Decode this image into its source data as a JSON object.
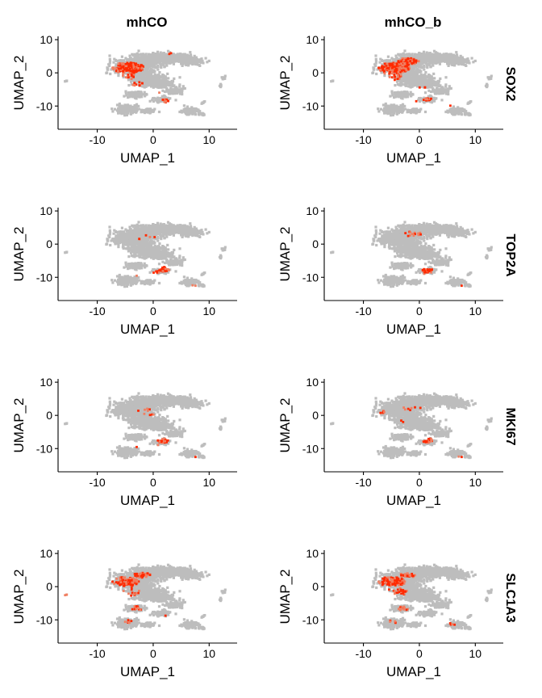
{
  "figure": {
    "columns": [
      "mhCO",
      "mhCO_b"
    ],
    "rows": [
      "SOX2",
      "TOP2A",
      "MKI67",
      "SLC1A3"
    ]
  },
  "colors": {
    "background_cells": "#bdbdbd",
    "high_expression": "#ff2a00",
    "mid_expression": "#f07f62"
  },
  "chart_data": {
    "type": "scatter",
    "title": "",
    "xlabel": "UMAP_1",
    "ylabel": "UMAP_2",
    "xlim": [
      -17,
      15
    ],
    "ylim": [
      -17,
      11
    ],
    "x_ticks": [
      -10,
      0,
      10
    ],
    "y_ticks": [
      -10,
      0,
      10
    ],
    "x_tick_labels": [
      "-10",
      "0",
      "10"
    ],
    "y_tick_labels": [
      "-10",
      "0",
      "10"
    ],
    "legend": "none",
    "facets": [
      {
        "gene": "SOX2",
        "sample": "mhCO",
        "expressed_regions": [
          [
            -4.5,
            1.5,
            2.8,
            1.6,
            0.75
          ],
          [
            -5,
            -1,
            1.8,
            1.4,
            0.6
          ],
          [
            -3,
            -3.5,
            1.2,
            0.8,
            0.55
          ],
          [
            1,
            -6,
            1.5,
            0.8,
            0.5
          ],
          [
            2.5,
            -8.5,
            1,
            0.6,
            0.8
          ],
          [
            -1,
            -8,
            0.8,
            0.4,
            0.45
          ],
          [
            -4,
            -9,
            0.6,
            0.4,
            0.35
          ],
          [
            3,
            6,
            0.6,
            0.5,
            0.3
          ]
        ]
      },
      {
        "gene": "SOX2",
        "sample": "mhCO_b",
        "expressed_regions": [
          [
            -4.5,
            1.5,
            2.8,
            1.6,
            0.8
          ],
          [
            -5,
            -1,
            1.8,
            1.4,
            0.65
          ],
          [
            -2,
            3.5,
            2,
            1,
            0.55
          ],
          [
            0.5,
            -5,
            1.2,
            0.9,
            0.45
          ],
          [
            1.5,
            -8,
            0.8,
            0.5,
            0.5
          ],
          [
            -1,
            -8.5,
            0.6,
            0.4,
            0.4
          ],
          [
            6,
            -10,
            0.6,
            0.4,
            0.35
          ]
        ]
      },
      {
        "gene": "TOP2A",
        "sample": "mhCO",
        "expressed_regions": [
          [
            2,
            -7.5,
            1.2,
            0.8,
            0.85
          ],
          [
            0.5,
            -8.5,
            0.6,
            0.4,
            0.6
          ],
          [
            -2.5,
            -9.5,
            0.5,
            0.4,
            0.55
          ],
          [
            5.5,
            -6.5,
            0.3,
            0.3,
            0.5
          ],
          [
            7.5,
            -12.5,
            0.5,
            0.4,
            0.7
          ],
          [
            -1,
            1.5,
            2,
            1.2,
            0.07
          ],
          [
            -3,
            5,
            0.3,
            0.2,
            0.5
          ]
        ]
      },
      {
        "gene": "TOP2A",
        "sample": "mhCO_b",
        "expressed_regions": [
          [
            1.5,
            -8,
            1,
            0.7,
            0.85
          ],
          [
            0.5,
            -9,
            0.5,
            0.4,
            0.6
          ],
          [
            -2,
            -10,
            0.4,
            0.3,
            0.5
          ],
          [
            7.5,
            -12.5,
            0.5,
            0.4,
            0.75
          ],
          [
            -6,
            0,
            0.8,
            0.5,
            0.12
          ],
          [
            -1,
            3,
            1.8,
            1,
            0.06
          ]
        ]
      },
      {
        "gene": "MKI67",
        "sample": "mhCO",
        "expressed_regions": [
          [
            2,
            -7.5,
            1.2,
            0.8,
            0.85
          ],
          [
            -2.5,
            -9.5,
            0.5,
            0.4,
            0.6
          ],
          [
            0.5,
            -9,
            0.5,
            0.3,
            0.5
          ],
          [
            7.5,
            -12.5,
            0.4,
            0.4,
            0.65
          ],
          [
            2,
            8,
            0.3,
            0.3,
            0.6
          ],
          [
            -1,
            1,
            2,
            1.2,
            0.06
          ]
        ]
      },
      {
        "gene": "MKI67",
        "sample": "mhCO_b",
        "expressed_regions": [
          [
            1.5,
            -7.5,
            1,
            0.7,
            0.85
          ],
          [
            -1,
            -8.5,
            0.6,
            0.4,
            0.6
          ],
          [
            7.5,
            -12.5,
            0.5,
            0.4,
            0.75
          ],
          [
            -6.5,
            1,
            0.6,
            0.4,
            0.15
          ],
          [
            -3,
            -2,
            0.6,
            0.5,
            0.12
          ],
          [
            -1,
            2,
            2,
            1,
            0.06
          ]
        ]
      },
      {
        "gene": "SLC1A3",
        "sample": "mhCO",
        "expressed_regions": [
          [
            -5,
            1.5,
            2.5,
            1.4,
            0.5
          ],
          [
            -4,
            -1.5,
            1.8,
            1.3,
            0.35
          ],
          [
            -2,
            3.5,
            1.5,
            0.8,
            0.35
          ],
          [
            -3,
            -6.5,
            1,
            0.8,
            0.3
          ],
          [
            -4.5,
            -10.5,
            0.8,
            0.5,
            0.3
          ],
          [
            2.5,
            -9,
            0.6,
            0.4,
            0.25
          ],
          [
            -15.5,
            -2.5,
            0.3,
            0.3,
            0.9
          ],
          [
            6,
            -12,
            0.6,
            0.5,
            0.2
          ]
        ]
      },
      {
        "gene": "SLC1A3",
        "sample": "mhCO_b",
        "expressed_regions": [
          [
            -5,
            1.5,
            2.5,
            1.4,
            0.55
          ],
          [
            -4,
            -1.5,
            1.8,
            1.3,
            0.4
          ],
          [
            -2,
            3.5,
            1.5,
            0.8,
            0.3
          ],
          [
            -3,
            -6.5,
            1,
            0.8,
            0.25
          ],
          [
            -4.5,
            -10.5,
            0.8,
            0.5,
            0.25
          ],
          [
            6,
            -11,
            0.8,
            0.6,
            0.25
          ],
          [
            1,
            -9,
            0.6,
            0.4,
            0.2
          ]
        ]
      }
    ],
    "cell_clusters": [
      [
        -3.5,
        1.5,
        3.5,
        2.2,
        520
      ],
      [
        -0.5,
        4,
        3.5,
        1.6,
        380
      ],
      [
        4,
        4.5,
        3.5,
        1.4,
        300
      ],
      [
        7,
        3.5,
        2,
        1,
        120
      ],
      [
        -1,
        -2,
        3,
        1.8,
        300
      ],
      [
        2,
        -3.5,
        1.8,
        1.1,
        120
      ],
      [
        4,
        -5.5,
        1.6,
        0.9,
        90
      ],
      [
        -3,
        -6.5,
        1.4,
        1,
        90
      ],
      [
        1.5,
        -8,
        1.4,
        0.8,
        90
      ],
      [
        -4.5,
        -11,
        1.8,
        1.2,
        160
      ],
      [
        -1,
        -11.5,
        1.2,
        0.6,
        60
      ],
      [
        6.5,
        -11.5,
        1.4,
        0.9,
        70
      ],
      [
        8.5,
        -12.5,
        0.5,
        0.4,
        14
      ],
      [
        12.5,
        -1.5,
        0.5,
        0.4,
        10
      ],
      [
        12,
        -4,
        0.3,
        0.3,
        5
      ],
      [
        -15.5,
        -2.5,
        0.2,
        0.2,
        3
      ],
      [
        9,
        -9,
        0.3,
        0.3,
        6
      ]
    ]
  }
}
